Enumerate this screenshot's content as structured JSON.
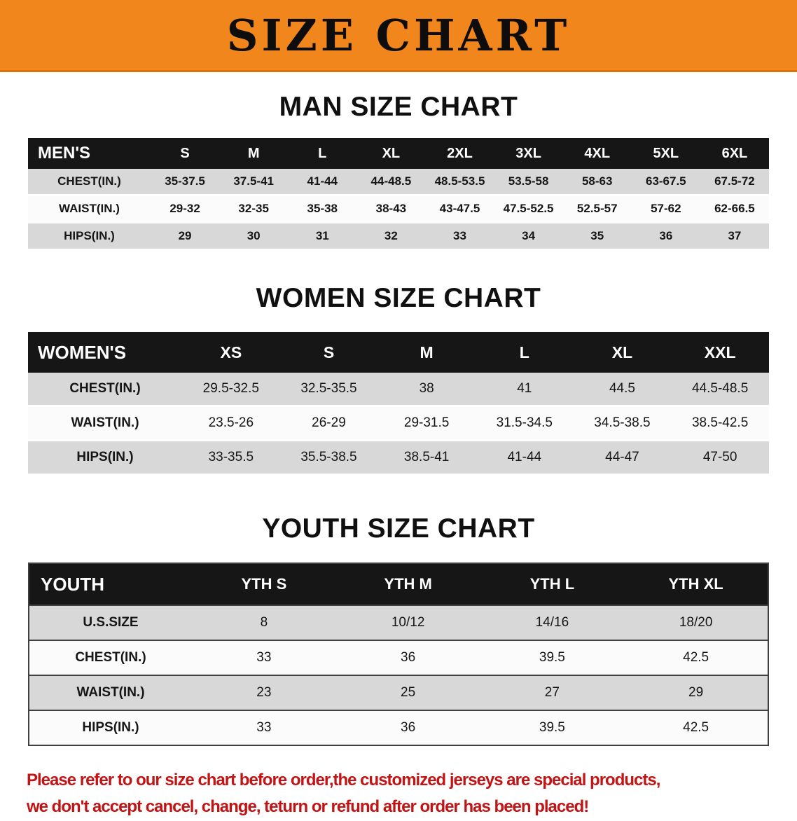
{
  "banner": {
    "title": "SIZE CHART",
    "bg_color": "#F0861C"
  },
  "sections": [
    {
      "heading": "MAN SIZE CHART",
      "table": {
        "header": [
          "MEN'S",
          "S",
          "M",
          "L",
          "XL",
          "2XL",
          "3XL",
          "4XL",
          "5XL",
          "6XL"
        ],
        "rows": [
          [
            "CHEST(IN.)",
            "35-37.5",
            "37.5-41",
            "41-44",
            "44-48.5",
            "48.5-53.5",
            "53.5-58",
            "58-63",
            "63-67.5",
            "67.5-72"
          ],
          [
            "WAIST(IN.)",
            "29-32",
            "32-35",
            "35-38",
            "38-43",
            "43-47.5",
            "47.5-52.5",
            "52.5-57",
            "57-62",
            "62-66.5"
          ],
          [
            "HIPS(IN.)",
            "29",
            "30",
            "31",
            "32",
            "33",
            "34",
            "35",
            "36",
            "37"
          ]
        ]
      }
    },
    {
      "heading": "WOMEN SIZE CHART",
      "table": {
        "header": [
          "WOMEN'S",
          "XS",
          "S",
          "M",
          "L",
          "XL",
          "XXL"
        ],
        "rows": [
          [
            "CHEST(IN.)",
            "29.5-32.5",
            "32.5-35.5",
            "38",
            "41",
            "44.5",
            "44.5-48.5"
          ],
          [
            "WAIST(IN.)",
            "23.5-26",
            "26-29",
            "29-31.5",
            "31.5-34.5",
            "34.5-38.5",
            "38.5-42.5"
          ],
          [
            "HIPS(IN.)",
            "33-35.5",
            "35.5-38.5",
            "38.5-41",
            "41-44",
            "44-47",
            "47-50"
          ]
        ]
      }
    },
    {
      "heading": "YOUTH SIZE CHART",
      "table": {
        "header": [
          "YOUTH",
          "YTH S",
          "YTH M",
          "YTH L",
          "YTH XL"
        ],
        "rows": [
          [
            "U.S.SIZE",
            "8",
            "10/12",
            "14/16",
            "18/20"
          ],
          [
            "CHEST(IN.)",
            "33",
            "36",
            "39.5",
            "42.5"
          ],
          [
            "WAIST(IN.)",
            "23",
            "25",
            "27",
            "29"
          ],
          [
            "HIPS(IN.)",
            "33",
            "36",
            "39.5",
            "42.5"
          ]
        ]
      }
    }
  ],
  "footer": {
    "line1": "Please refer to our size chart before order,the customized jerseys are special products,",
    "line2": "we don't accept cancel, change, teturn or refund after order has been placed!",
    "text_color": "#C21414"
  }
}
